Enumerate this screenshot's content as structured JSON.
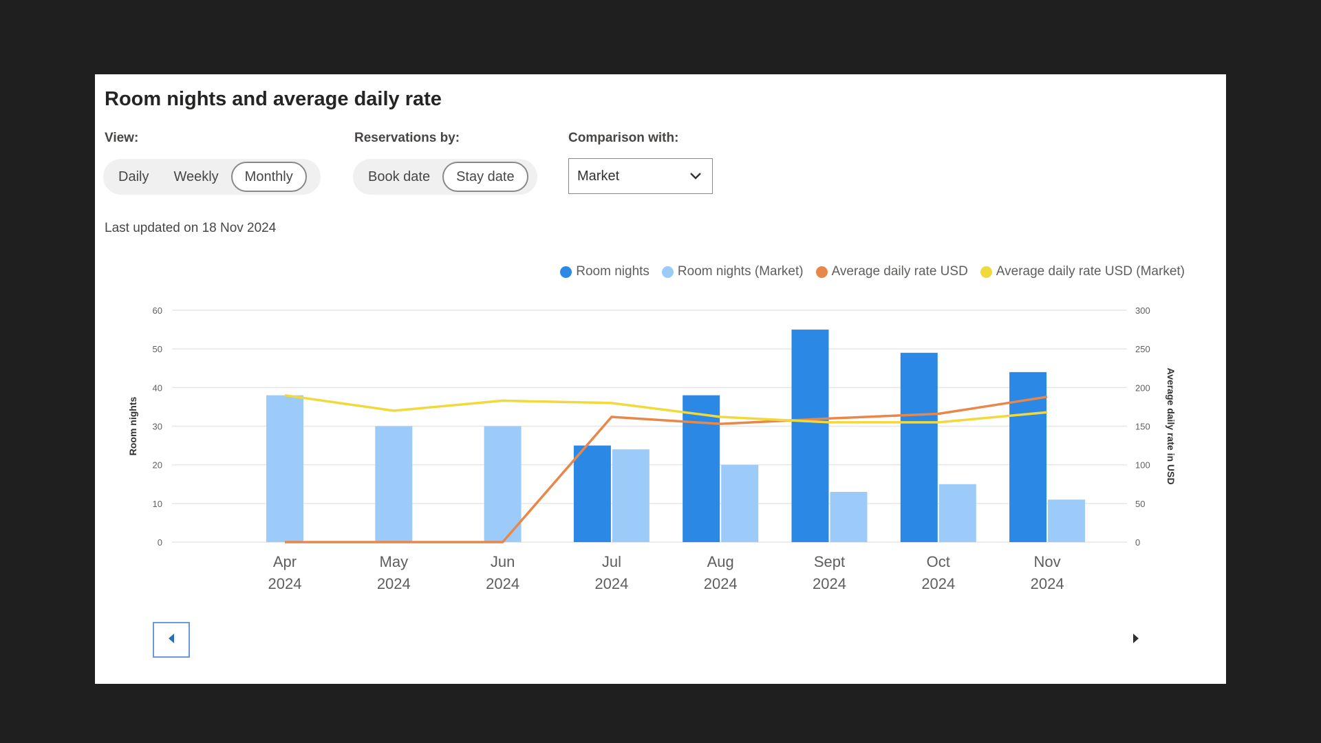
{
  "title": "Room nights and average daily rate",
  "controls": {
    "view_label": "View:",
    "view_options": [
      "Daily",
      "Weekly",
      "Monthly"
    ],
    "view_selected": "Monthly",
    "reservations_label": "Reservations by:",
    "reservations_options": [
      "Book date",
      "Stay date"
    ],
    "reservations_selected": "Stay date",
    "comparison_label": "Comparison with:",
    "comparison_value": "Market"
  },
  "last_updated": "Last updated on 18 Nov 2024",
  "colors": {
    "room_nights": "#2b88e4",
    "room_nights_market": "#9ccbf9",
    "adr": "#e8874a",
    "adr_market": "#f2d93b"
  },
  "icons": {
    "dropdown": "chevron-down-icon",
    "prev": "caret-left-icon",
    "next": "caret-right-icon"
  },
  "chart_data": {
    "type": "bar",
    "categories": [
      [
        "Apr",
        "2024"
      ],
      [
        "May",
        "2024"
      ],
      [
        "Jun",
        "2024"
      ],
      [
        "Jul",
        "2024"
      ],
      [
        "Aug",
        "2024"
      ],
      [
        "Sept",
        "2024"
      ],
      [
        "Oct",
        "2024"
      ],
      [
        "Nov",
        "2024"
      ]
    ],
    "series": [
      {
        "name": "Room nights",
        "kind": "bar",
        "axis": "left",
        "values": [
          0,
          0,
          0,
          25,
          38,
          55,
          49,
          44
        ]
      },
      {
        "name": "Room nights (Market)",
        "kind": "bar",
        "axis": "left",
        "values": [
          38,
          30,
          30,
          24,
          20,
          13,
          15,
          11
        ]
      },
      {
        "name": "Average daily rate USD",
        "kind": "line",
        "axis": "right",
        "values": [
          0,
          0,
          0,
          162,
          153,
          160,
          166,
          188
        ]
      },
      {
        "name": "Average daily rate USD (Market)",
        "kind": "line",
        "axis": "right",
        "values": [
          190,
          170,
          183,
          180,
          162,
          155,
          155,
          168
        ]
      }
    ],
    "ylabel": "Room nights",
    "y2label": "Average daily rate in USD",
    "ylim": [
      0,
      60
    ],
    "y2lim": [
      0,
      300
    ],
    "yticks": [
      0,
      10,
      20,
      30,
      40,
      50,
      60
    ],
    "y2ticks": [
      0,
      50,
      100,
      150,
      200,
      250,
      300
    ],
    "grid": true,
    "legend_position": "top-right"
  }
}
